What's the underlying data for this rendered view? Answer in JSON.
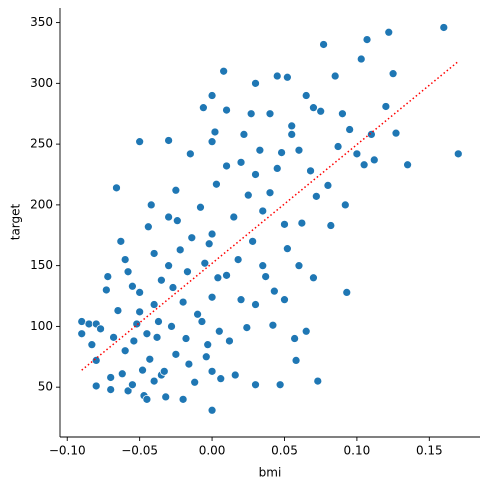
{
  "chart_data": {
    "type": "scatter",
    "x_label": "bmi",
    "y_label": "target",
    "color": "#1f77b4",
    "x": [
      -0.09,
      -0.09,
      -0.085,
      -0.08,
      -0.083,
      -0.08,
      -0.08,
      -0.077,
      -0.073,
      -0.072,
      -0.07,
      -0.07,
      -0.068,
      -0.066,
      -0.065,
      -0.063,
      -0.062,
      -0.06,
      -0.06,
      -0.058,
      -0.058,
      -0.055,
      -0.055,
      -0.054,
      -0.052,
      -0.05,
      -0.05,
      -0.05,
      -0.048,
      -0.047,
      -0.045,
      -0.045,
      -0.044,
      -0.043,
      -0.042,
      -0.04,
      -0.04,
      -0.04,
      -0.038,
      -0.037,
      -0.035,
      -0.035,
      -0.033,
      -0.032,
      -0.03,
      -0.03,
      -0.03,
      -0.028,
      -0.027,
      -0.025,
      -0.025,
      -0.024,
      -0.022,
      -0.02,
      -0.02,
      -0.018,
      -0.017,
      -0.016,
      -0.015,
      -0.014,
      -0.012,
      -0.01,
      -0.008,
      -0.007,
      -0.006,
      -0.005,
      -0.004,
      -0.003,
      -0.002,
      0.0,
      0.0,
      0.0,
      0.0,
      0.0,
      0.0,
      0.002,
      0.003,
      0.004,
      0.005,
      0.006,
      0.008,
      0.01,
      0.01,
      0.01,
      0.012,
      0.015,
      0.016,
      0.018,
      0.02,
      0.02,
      0.022,
      0.024,
      0.025,
      0.027,
      0.028,
      0.03,
      0.03,
      0.03,
      0.03,
      0.033,
      0.035,
      0.035,
      0.037,
      0.04,
      0.04,
      0.042,
      0.043,
      0.045,
      0.045,
      0.047,
      0.048,
      0.05,
      0.05,
      0.052,
      0.052,
      0.055,
      0.055,
      0.057,
      0.058,
      0.06,
      0.06,
      0.062,
      0.065,
      0.065,
      0.068,
      0.07,
      0.07,
      0.072,
      0.073,
      0.075,
      0.077,
      0.08,
      0.082,
      0.085,
      0.087,
      0.09,
      0.092,
      0.093,
      0.095,
      0.1,
      0.103,
      0.105,
      0.107,
      0.11,
      0.112,
      0.12,
      0.122,
      0.125,
      0.127,
      0.135,
      0.16,
      0.17
    ],
    "values": [
      104,
      94,
      102,
      102,
      85,
      72,
      51,
      98,
      130,
      141,
      58,
      48,
      91,
      214,
      113,
      170,
      61,
      155,
      80,
      145,
      47,
      52,
      133,
      88,
      102,
      112,
      252,
      128,
      64,
      43,
      40,
      94,
      182,
      73,
      200,
      160,
      118,
      55,
      91,
      104,
      138,
      60,
      63,
      42,
      253,
      190,
      150,
      100,
      132,
      212,
      77,
      187,
      163,
      40,
      120,
      90,
      145,
      69,
      242,
      173,
      54,
      110,
      198,
      104,
      280,
      152,
      75,
      85,
      168,
      290,
      252,
      176,
      124,
      63,
      31,
      260,
      217,
      140,
      96,
      57,
      310,
      278,
      232,
      142,
      88,
      190,
      60,
      155,
      122,
      235,
      258,
      99,
      208,
      275,
      170,
      300,
      225,
      118,
      52,
      245,
      195,
      150,
      141,
      275,
      210,
      101,
      129,
      306,
      230,
      52,
      243,
      184,
      122,
      164,
      305,
      265,
      258,
      90,
      72,
      245,
      150,
      185,
      290,
      96,
      228,
      280,
      140,
      207,
      55,
      277,
      332,
      216,
      183,
      306,
      248,
      275,
      200,
      128,
      262,
      242,
      320,
      233,
      336,
      258,
      237,
      281,
      342,
      308,
      259,
      233,
      346,
      242
    ],
    "trend": {
      "color": "red",
      "style": "dotted",
      "x": [
        -0.09,
        0.17
      ],
      "values": [
        64,
        318
      ]
    },
    "xlim": [
      -0.105,
      0.185
    ],
    "ylim": [
      9,
      362
    ],
    "xticks": [
      {
        "value": -0.1,
        "label": "−0.10"
      },
      {
        "value": -0.05,
        "label": "−0.05"
      },
      {
        "value": 0,
        "label": "0.00"
      },
      {
        "value": 0.05,
        "label": "0.05"
      },
      {
        "value": 0.1,
        "label": "0.10"
      },
      {
        "value": 0.15,
        "label": "0.15"
      }
    ],
    "yticks": [
      50,
      100,
      150,
      200,
      250,
      300,
      350
    ]
  }
}
